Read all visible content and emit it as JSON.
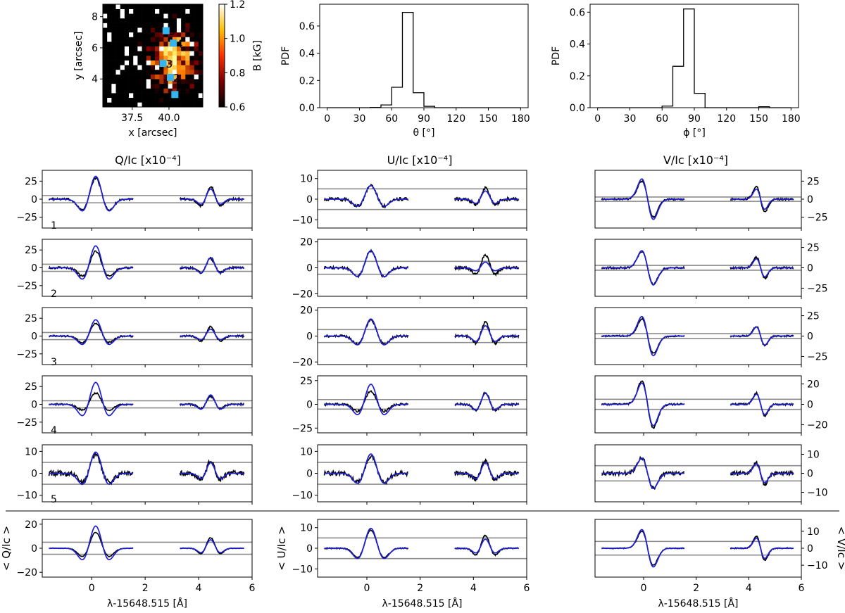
{
  "figure": {
    "column_titles": [
      "Q/Iᴄ [x10⁻⁴]",
      "U/Iᴄ [x10⁻⁴]",
      "V/Iᴄ [x10⁻⁴]"
    ],
    "colors": {
      "observed": "#000000",
      "fit": "#1f1fd6",
      "threshold": "#8c8c8c",
      "marker": "#33b5f0"
    }
  },
  "chart_data": [
    {
      "id": "map",
      "type": "heatmap",
      "xlabel": "x [arcsec]",
      "ylabel": "y [arcsec]",
      "xlim": [
        35.5,
        42.3
      ],
      "ylim": [
        2.2,
        8.8
      ],
      "xticks": [
        "37.5",
        "40.0"
      ],
      "yticks": [
        "4",
        "6",
        "8"
      ],
      "colorbar": {
        "label": "B [kG]",
        "range": [
          0.6,
          1.2
        ],
        "ticks": [
          "0.6",
          "0.8",
          "1.0",
          "1.2"
        ],
        "colormap": "afmhot"
      },
      "grid_size": [
        23,
        22
      ],
      "seed": 7,
      "markers": [
        {
          "label": "1",
          "x": 40.4,
          "y": 3.0
        },
        {
          "label": "2",
          "x": 40.1,
          "y": 4.1
        },
        {
          "label": "3",
          "x": 39.6,
          "y": 5.0
        },
        {
          "label": "4",
          "x": 40.3,
          "y": 6.3
        },
        {
          "label": "5",
          "x": 39.8,
          "y": 7.1
        }
      ]
    },
    {
      "id": "theta",
      "type": "bar",
      "style": "step-histogram",
      "ylabel": "PDF",
      "xlabel": "θ [°]",
      "bin_edges": [
        0,
        10,
        20,
        30,
        40,
        50,
        60,
        70,
        80,
        90,
        100,
        110,
        120,
        130,
        140,
        150,
        160,
        170,
        180
      ],
      "values": [
        0,
        0,
        0,
        0,
        0.002,
        0.02,
        0.15,
        0.7,
        0.11,
        0.01,
        0,
        0,
        0,
        0,
        0,
        0,
        0,
        0
      ],
      "xlim": [
        -7,
        187
      ],
      "ylim": [
        0,
        0.76
      ],
      "xticks": [
        "0",
        "30",
        "60",
        "90",
        "120",
        "150",
        "180"
      ],
      "yticks": [
        "0.0",
        "0.2",
        "0.4",
        "0.6"
      ]
    },
    {
      "id": "phi",
      "type": "bar",
      "style": "step-histogram",
      "ylabel": "PDF",
      "xlabel": "ϕ [°]",
      "bin_edges": [
        0,
        10,
        20,
        30,
        40,
        50,
        60,
        70,
        80,
        90,
        100,
        110,
        120,
        130,
        140,
        150,
        160,
        170,
        180
      ],
      "values": [
        0,
        0,
        0,
        0,
        0,
        0,
        0.01,
        0.26,
        0.62,
        0.09,
        0,
        0,
        0,
        0,
        0,
        0.006,
        0,
        0
      ],
      "xlim": [
        -7,
        187
      ],
      "ylim": [
        0,
        0.65
      ],
      "xticks": [
        "0",
        "30",
        "60",
        "90",
        "120",
        "150",
        "180"
      ],
      "yticks": [
        "0.0",
        "0.2",
        "0.4",
        "0.6"
      ]
    },
    {
      "id": "profiles",
      "type": "line",
      "xlabel": "λ-15648.515 [Å]",
      "xlim": [
        -1.85,
        6.0
      ],
      "xticks": [
        "0",
        "2",
        "4",
        "6"
      ],
      "line1_center": 0.15,
      "line2_center": 4.45,
      "segments": [
        [
          -1.6,
          1.55
        ],
        [
          3.3,
          5.7
        ]
      ],
      "series": [
        {
          "name": "observed",
          "color": "#000000"
        },
        {
          "name": "fit",
          "color": "#1f1fd6"
        }
      ],
      "rows": [
        {
          "label": "1",
          "Q": {
            "ylim": [
              -40,
              40
            ],
            "yticks": [
              "25",
              "0",
              "−25"
            ],
            "thr": 5,
            "obs": [
              33,
              20
            ],
            "fit": [
              36,
              16
            ],
            "noise": 1.5
          },
          "U": {
            "ylim": [
              -14,
              14
            ],
            "yticks": [
              "10",
              "0",
              "−10"
            ],
            "thr": 5,
            "obs": [
              7.5,
              6
            ],
            "fit": [
              7.5,
              4.5
            ],
            "noise": 0.8
          },
          "V": {
            "ylim": [
              -40,
              40
            ],
            "yticks": [
              "25",
              "0",
              "−25"
            ],
            "thr": 3,
            "obs": [
              25,
              18
            ],
            "fit": [
              28,
              14
            ],
            "noise": 1.2
          }
        },
        {
          "label": "2",
          "Q": {
            "ylim": [
              -40,
              40
            ],
            "yticks": [
              "25",
              "0",
              "−25"
            ],
            "thr": 5,
            "obs": [
              26,
              15
            ],
            "fit": [
              35,
              16
            ],
            "noise": 1.5
          },
          "U": {
            "ylim": [
              -22,
              22
            ],
            "yticks": [
              "20",
              "0",
              "−20"
            ],
            "thr": 5,
            "obs": [
              15,
              11
            ],
            "fit": [
              15,
              5
            ],
            "noise": 1
          },
          "V": {
            "ylim": [
              -35,
              35
            ],
            "yticks": [
              "25",
              "0",
              "−25"
            ],
            "thr": 3,
            "obs": [
              20,
              13
            ],
            "fit": [
              21,
              11
            ],
            "noise": 1.2
          }
        },
        {
          "label": "3",
          "Q": {
            "ylim": [
              -40,
              40
            ],
            "yticks": [
              "25",
              "0",
              "−25"
            ],
            "thr": 5,
            "obs": [
              20,
              15
            ],
            "fit": [
              26,
              11
            ],
            "noise": 1.2
          },
          "U": {
            "ylim": [
              -22,
              22
            ],
            "yticks": [
              "20",
              "0",
              "−20"
            ],
            "thr": 5,
            "obs": [
              14,
              12
            ],
            "fit": [
              15,
              9
            ],
            "noise": 0.9
          },
          "V": {
            "ylim": [
              -35,
              35
            ],
            "yticks": [
              "25",
              "0",
              "−25"
            ],
            "thr": 3,
            "obs": [
              21,
              12
            ],
            "fit": [
              24,
              11
            ],
            "noise": 1
          }
        },
        {
          "label": "4",
          "Q": {
            "ylim": [
              -40,
              40
            ],
            "yticks": [
              "25",
              "0",
              "−25"
            ],
            "thr": 5,
            "obs": [
              18,
              13
            ],
            "fit": [
              35,
              15
            ],
            "noise": 1.2
          },
          "U": {
            "ylim": [
              -30,
              30
            ],
            "yticks": [
              "25",
              "0",
              "−25"
            ],
            "thr": 5,
            "obs": [
              16,
              14
            ],
            "fit": [
              24,
              13
            ],
            "noise": 1.2
          },
          "V": {
            "ylim": [
              -28,
              28
            ],
            "yticks": [
              "20",
              "0",
              "−20"
            ],
            "thr": 5,
            "obs": [
              23,
              11
            ],
            "fit": [
              21,
              10
            ],
            "noise": 0.9
          }
        },
        {
          "label": "5",
          "Q": {
            "ylim": [
              -13,
              13
            ],
            "yticks": [
              "10",
              "0",
              "−10"
            ],
            "thr": 5,
            "obs": [
              9.5,
              6
            ],
            "fit": [
              11,
              5.5
            ],
            "noise": 1.2
          },
          "U": {
            "ylim": [
              -13,
              13
            ],
            "yticks": [
              "10",
              "0",
              "−10"
            ],
            "thr": 5,
            "obs": [
              9,
              6
            ],
            "fit": [
              10,
              5.5
            ],
            "noise": 1
          },
          "V": {
            "ylim": [
              -15,
              15
            ],
            "yticks": [
              "10",
              "0",
              "−10"
            ],
            "thr": 4,
            "obs": [
              8,
              5.5
            ],
            "fit": [
              8,
              5
            ],
            "noise": 1
          }
        },
        {
          "label": "",
          "Q": {
            "ylim": [
              -24,
              24
            ],
            "yticks": [
              "20",
              "0",
              "−20"
            ],
            "thr": 5,
            "obs": [
              15,
              10
            ],
            "fit": [
              21,
              8
            ],
            "noise": 0.3,
            "ylabel": "< Q/Iᴄ >"
          },
          "U": {
            "ylim": [
              -14,
              14
            ],
            "yticks": [
              "10",
              "0",
              "−10"
            ],
            "thr": 5,
            "obs": [
              10,
              7
            ],
            "fit": [
              11,
              5
            ],
            "noise": 0.3,
            "ylabel": "< U/Iᴄ >"
          },
          "V": {
            "ylim": [
              -17,
              17
            ],
            "yticks": [
              "10",
              "0",
              "−10"
            ],
            "thr": 4,
            "obs": [
              10,
              7
            ],
            "fit": [
              11,
              6
            ],
            "noise": 0.3,
            "ylabel": "< V/Iᴄ >"
          }
        }
      ]
    }
  ]
}
